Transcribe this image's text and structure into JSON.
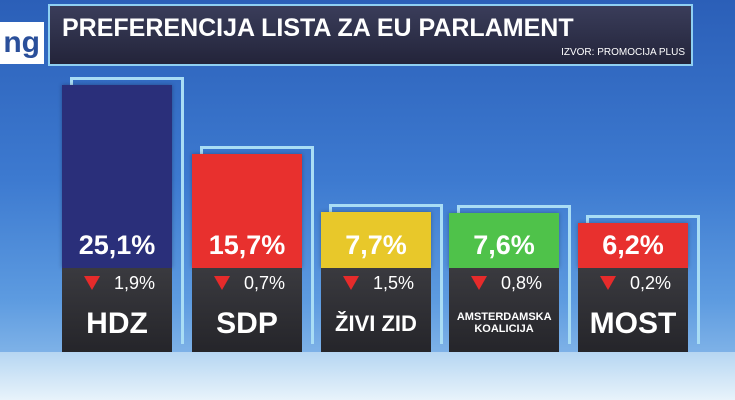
{
  "logo_text": "ng",
  "chart_data": {
    "type": "bar",
    "title": "PREFERENCIJA LISTA ZA EU PARLAMENT",
    "source": "IZVOR: PROMOCIJA PLUS",
    "categories": [
      "HDZ",
      "SDP",
      "ŽIVI ZID",
      "AMSTERDAMSKA KOALICIJA",
      "MOST"
    ],
    "values": [
      25.1,
      15.7,
      7.7,
      7.6,
      6.2
    ],
    "value_labels": [
      "25,1%",
      "15,7%",
      "7,7%",
      "7,6%",
      "6,2%"
    ],
    "changes": [
      1.9,
      0.7,
      1.5,
      0.8,
      0.2
    ],
    "change_labels": [
      "1,9%",
      "0,7%",
      "1,5%",
      "0,8%",
      "0,2%"
    ],
    "colors": [
      "#2a2f7a",
      "#e8302e",
      "#e8c82a",
      "#4fc24a",
      "#e8302e"
    ]
  }
}
